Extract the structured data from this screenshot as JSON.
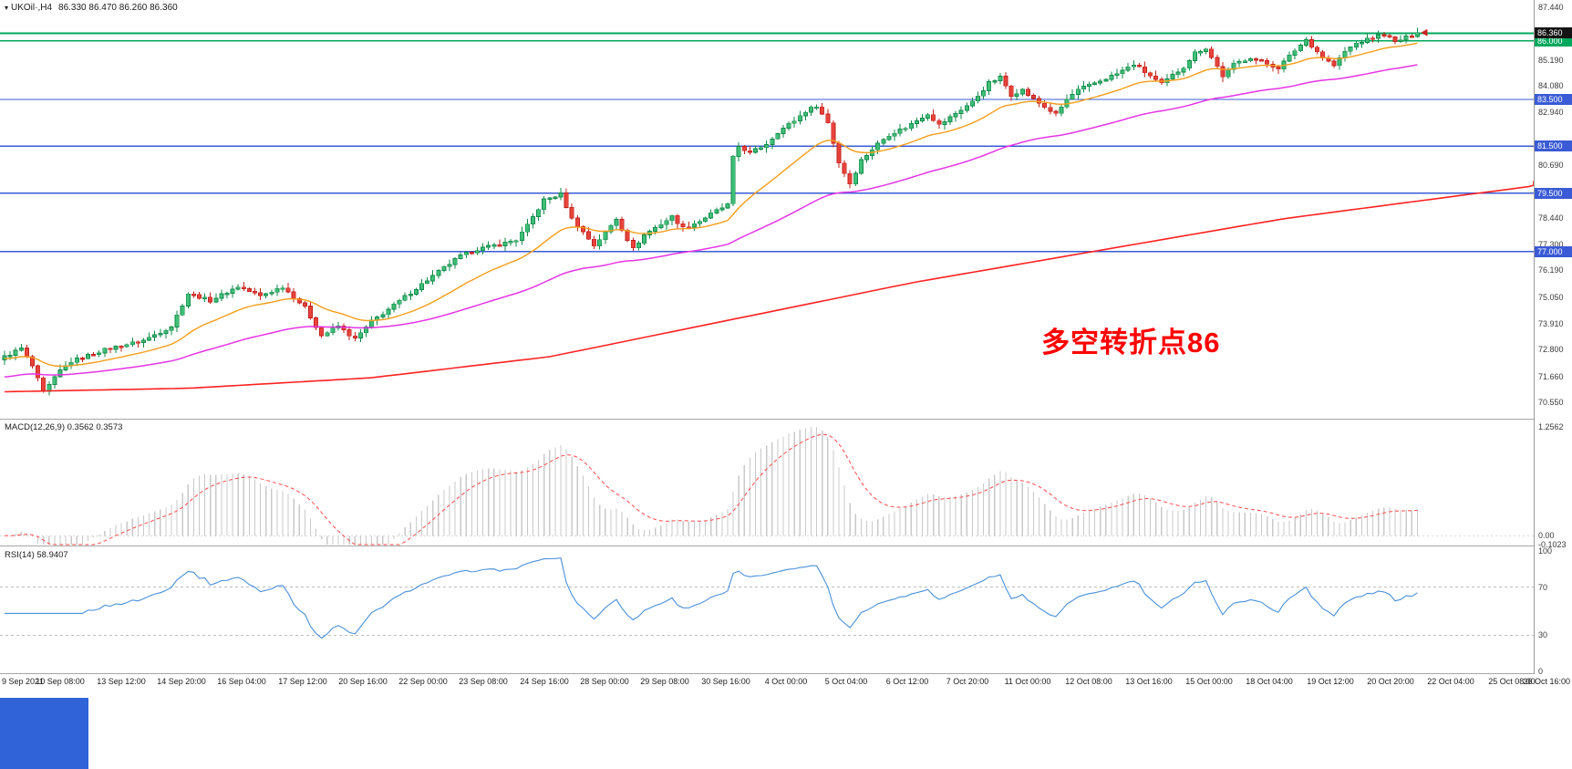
{
  "window": {
    "bg": "#ffffff",
    "taskbar_fragment_color": "#2F63D7"
  },
  "chart_data": [
    {
      "type": "candlestick",
      "title": {
        "dropdown_icon": "▾",
        "symbol": "UKOil·,H4",
        "ohlc": "86.330 86.470 86.260 86.360"
      },
      "timeframe": "H4",
      "y_axis": {
        "top_price": 87.44,
        "bottom_price": 70.55,
        "ticks": [
          87.44,
          85.19,
          84.08,
          82.94,
          80.69,
          78.44,
          77.3,
          76.19,
          75.05,
          73.91,
          72.8,
          71.66,
          70.55
        ]
      },
      "price_marker": {
        "label": "86.360",
        "value": 86.36,
        "bg": "#141414"
      },
      "hlines": [
        {
          "value": 86.33,
          "color": "#00A85D",
          "w": 1.6
        },
        {
          "value": 86.0,
          "color": "#00A85D",
          "w": 1.6,
          "badge": "86.000"
        },
        {
          "value": 83.5,
          "color": "#3A5BD5",
          "w": 1.4,
          "badge": "83.500"
        },
        {
          "value": 81.5,
          "color": "#3A5BD5",
          "w": 1.4,
          "badge": "81.500"
        },
        {
          "value": 79.5,
          "color": "#3A5BD5",
          "w": 1.4,
          "badge": "79.500"
        },
        {
          "value": 77.0,
          "color": "#3A5BD5",
          "w": 1.4,
          "badge": "77.000"
        }
      ],
      "annotation": {
        "text": "多空转折点86",
        "color": "#FF0000"
      },
      "candles": {
        "count": 255,
        "spacing": 6.1,
        "x0": 5,
        "up_fill": "#3FBF77",
        "up_stroke": "#128A4A",
        "down_fill": "#E8433C",
        "down_stroke": "#C2221B",
        "close_anchors": [
          [
            0,
            72.5
          ],
          [
            3,
            72.85
          ],
          [
            5,
            72.1
          ],
          [
            7,
            70.95
          ],
          [
            10,
            71.9
          ],
          [
            12,
            72.3
          ],
          [
            18,
            72.8
          ],
          [
            25,
            73.2
          ],
          [
            30,
            73.8
          ],
          [
            33,
            75.2
          ],
          [
            37,
            74.9
          ],
          [
            42,
            75.5
          ],
          [
            46,
            75.1
          ],
          [
            50,
            75.5
          ],
          [
            54,
            74.6
          ],
          [
            57,
            73.4
          ],
          [
            60,
            73.8
          ],
          [
            63,
            73.25
          ],
          [
            66,
            74.0
          ],
          [
            70,
            74.7
          ],
          [
            75,
            75.6
          ],
          [
            79,
            76.3
          ],
          [
            82,
            76.8
          ],
          [
            85,
            77.1
          ],
          [
            89,
            77.3
          ],
          [
            92,
            77.5
          ],
          [
            94,
            78.1
          ],
          [
            97,
            79.2
          ],
          [
            100,
            79.45
          ],
          [
            102,
            78.4
          ],
          [
            106,
            77.25
          ],
          [
            108,
            77.8
          ],
          [
            110,
            78.4
          ],
          [
            113,
            77.1
          ],
          [
            115,
            77.7
          ],
          [
            120,
            78.5
          ],
          [
            122,
            78.0
          ],
          [
            125,
            78.3
          ],
          [
            127,
            78.6
          ],
          [
            130,
            79.0
          ],
          [
            131,
            81.0
          ],
          [
            132,
            81.5
          ],
          [
            134,
            81.2
          ],
          [
            137,
            81.6
          ],
          [
            139,
            82.1
          ],
          [
            142,
            82.6
          ],
          [
            144,
            83.0
          ],
          [
            146,
            83.25
          ],
          [
            148,
            82.5
          ],
          [
            150,
            80.8
          ],
          [
            152,
            79.9
          ],
          [
            154,
            80.9
          ],
          [
            157,
            81.6
          ],
          [
            159,
            82.0
          ],
          [
            162,
            82.3
          ],
          [
            166,
            82.9
          ],
          [
            168,
            82.4
          ],
          [
            171,
            82.9
          ],
          [
            174,
            83.4
          ],
          [
            177,
            84.2
          ],
          [
            179,
            84.45
          ],
          [
            181,
            83.7
          ],
          [
            183,
            83.9
          ],
          [
            185,
            83.5
          ],
          [
            189,
            82.85
          ],
          [
            191,
            83.5
          ],
          [
            193,
            83.9
          ],
          [
            197,
            84.3
          ],
          [
            200,
            84.6
          ],
          [
            203,
            85.0
          ],
          [
            206,
            84.5
          ],
          [
            208,
            84.15
          ],
          [
            212,
            84.9
          ],
          [
            214,
            85.5
          ],
          [
            216,
            85.7
          ],
          [
            219,
            84.5
          ],
          [
            221,
            85.0
          ],
          [
            224,
            85.3
          ],
          [
            226,
            85.1
          ],
          [
            229,
            84.85
          ],
          [
            232,
            85.6
          ],
          [
            234,
            86.05
          ],
          [
            237,
            85.3
          ],
          [
            239,
            84.95
          ],
          [
            241,
            85.55
          ],
          [
            243,
            85.9
          ],
          [
            246,
            86.15
          ],
          [
            248,
            86.3
          ],
          [
            250,
            85.95
          ],
          [
            252,
            86.15
          ],
          [
            254,
            86.36
          ]
        ]
      },
      "overlays": [
        {
          "name": "ma-fast",
          "type": "ema",
          "period": 20,
          "seed": 72.4,
          "color": "#F59E1B",
          "width": 1.4
        },
        {
          "name": "ma-mid",
          "type": "ema",
          "period": 65,
          "seed": 71.6,
          "color": "#E535E5",
          "width": 1.5
        },
        {
          "name": "ma-slow",
          "type": "anchored",
          "color": "#FF2222",
          "width": 1.6,
          "extend": 283,
          "anchors": [
            [
              0,
              71.0
            ],
            [
              33,
              71.15
            ],
            [
              66,
              71.6
            ],
            [
              98,
              72.5
            ],
            [
              131,
              74.1
            ],
            [
              164,
              75.7
            ],
            [
              197,
              77.05
            ],
            [
              230,
              78.4
            ],
            [
              262,
              79.4
            ],
            [
              283,
              80.05
            ]
          ]
        }
      ],
      "x_axis": {
        "labels": [
          "9 Sep 2021",
          "10 Sep 08:00",
          "13 Sep 12:00",
          "14 Sep 20:00",
          "16 Sep 04:00",
          "17 Sep 12:00",
          "20 Sep 16:00",
          "22 Sep 00:00",
          "23 Sep 08:00",
          "24 Sep 16:00",
          "28 Sep 00:00",
          "29 Sep 08:00",
          "30 Sep 16:00",
          "4 Oct 00:00",
          "5 Oct 04:00",
          "6 Oct 12:00",
          "7 Oct 20:00",
          "11 Oct 00:00",
          "12 Oct 08:00",
          "13 Oct 16:00",
          "15 Oct 00:00",
          "18 Oct 04:00",
          "19 Oct 12:00",
          "20 Oct 20:00",
          "22 Oct 04:00",
          "25 Oct 08:00",
          "26 Oct 16:00"
        ]
      }
    },
    {
      "type": "macd-histogram",
      "label": "MACD(12,26,9) 0.3562 0.3573",
      "params": {
        "fast": 12,
        "slow": 26,
        "signal": 9
      },
      "current": {
        "macd": 0.3562,
        "signal": 0.3573
      },
      "scale_max": 1.2562,
      "scale_min": -0.1023,
      "y_ticks": [
        {
          "v": 1.2562,
          "t": "1.2562"
        },
        {
          "v": 0,
          "t": "0.00"
        },
        {
          "v": -0.1023,
          "t": "-0.1023"
        }
      ],
      "histogram_color": "#C9C9C9",
      "signal_color": "#FF4A4A"
    },
    {
      "type": "rsi",
      "label": "RSI(14) 58.9407",
      "period": 14,
      "current": 58.9407,
      "levels": [
        70,
        30
      ],
      "y_ticks": [
        100,
        70,
        30,
        0
      ],
      "line_color": "#4A90D9",
      "level_color": "#BDBDBD"
    }
  ]
}
